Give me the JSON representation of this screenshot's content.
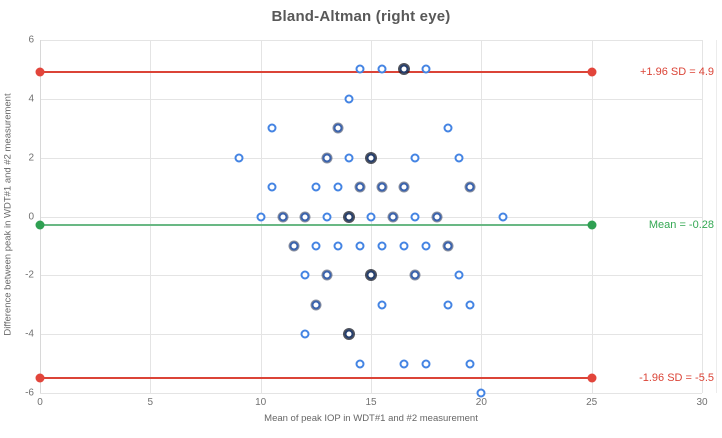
{
  "title": "Bland-Altman (right eye)",
  "colors": {
    "marker_blue": "#4484e3",
    "sd_line_red": "#db4437",
    "sd_dot_red": "#e2453b",
    "mean_line_green": "#69b884",
    "mean_dot_green": "#2fa052",
    "mean_text_green": "#34a853",
    "grid_gray": "#e4e4e4",
    "title_text": "#585858",
    "tick_text": "#717171",
    "axis_title_text": "#666666"
  },
  "chart_data": {
    "type": "scatter",
    "title": "Bland-Altman (right eye)",
    "xlabel": "Mean of peak IOP in WDT#1 and #2 measurement",
    "ylabel": "Difference between peak in WDT#1 and #2 measurement",
    "xlim": [
      0,
      30
    ],
    "ylim": [
      -6,
      6
    ],
    "x_ticks": [
      0,
      5,
      10,
      15,
      20,
      25,
      30
    ],
    "y_ticks": [
      6,
      4,
      2,
      0,
      -2,
      -4,
      -6
    ],
    "grid": true,
    "legend": "none",
    "reference_lines": [
      {
        "name": "upper-loa",
        "label": "+1.96 SD = 4.9",
        "y": 4.9,
        "x_start": 0,
        "x_end": 25,
        "line_color": "#db4437",
        "dot_color": "#e2453b",
        "text_color": "#db4437"
      },
      {
        "name": "mean",
        "label": "Mean = -0.28",
        "y": -0.28,
        "x_start": 0,
        "x_end": 25,
        "line_color": "#69b884",
        "dot_color": "#2fa052",
        "text_color": "#34a853"
      },
      {
        "name": "lower-loa",
        "label": "-1.96 SD = -5.5",
        "y": -5.5,
        "x_start": 0,
        "x_end": 25,
        "line_color": "#db4437",
        "dot_color": "#e2453b",
        "text_color": "#db4437"
      }
    ],
    "points_note": "each point is [mean_x, difference_y, overlap_weight]",
    "points": [
      [
        14.5,
        5,
        1
      ],
      [
        15.5,
        5,
        1
      ],
      [
        16.5,
        5,
        3
      ],
      [
        17.5,
        5,
        1
      ],
      [
        14,
        4,
        1
      ],
      [
        10.5,
        3,
        1
      ],
      [
        13.5,
        3,
        2
      ],
      [
        18.5,
        3,
        1
      ],
      [
        9,
        2,
        1
      ],
      [
        13,
        2,
        2
      ],
      [
        14,
        2,
        1
      ],
      [
        15,
        2,
        3
      ],
      [
        17,
        2,
        1
      ],
      [
        19,
        2,
        1
      ],
      [
        10.5,
        1,
        1
      ],
      [
        12.5,
        1,
        1
      ],
      [
        13.5,
        1,
        1
      ],
      [
        14.5,
        1,
        2
      ],
      [
        15.5,
        1,
        2
      ],
      [
        16.5,
        1,
        2
      ],
      [
        19.5,
        1,
        2
      ],
      [
        10,
        0,
        1
      ],
      [
        11,
        0,
        2
      ],
      [
        12,
        0,
        2
      ],
      [
        13,
        0,
        1
      ],
      [
        14,
        0,
        3
      ],
      [
        15,
        0,
        1
      ],
      [
        16,
        0,
        2
      ],
      [
        17,
        0,
        1
      ],
      [
        18,
        0,
        2
      ],
      [
        21,
        0,
        1
      ],
      [
        11.5,
        -1,
        2
      ],
      [
        12.5,
        -1,
        1
      ],
      [
        13.5,
        -1,
        1
      ],
      [
        14.5,
        -1,
        1
      ],
      [
        15.5,
        -1,
        1
      ],
      [
        16.5,
        -1,
        1
      ],
      [
        17.5,
        -1,
        1
      ],
      [
        18.5,
        -1,
        2
      ],
      [
        12,
        -2,
        1
      ],
      [
        13,
        -2,
        2
      ],
      [
        15,
        -2,
        3
      ],
      [
        17,
        -2,
        2
      ],
      [
        19,
        -2,
        1
      ],
      [
        12.5,
        -3,
        2
      ],
      [
        15.5,
        -3,
        1
      ],
      [
        18.5,
        -3,
        1
      ],
      [
        19.5,
        -3,
        1
      ],
      [
        12,
        -4,
        1
      ],
      [
        14,
        -4,
        3
      ],
      [
        14.5,
        -5,
        1
      ],
      [
        16.5,
        -5,
        1
      ],
      [
        17.5,
        -5,
        1
      ],
      [
        19.5,
        -5,
        1
      ],
      [
        20,
        -6,
        1
      ]
    ]
  }
}
